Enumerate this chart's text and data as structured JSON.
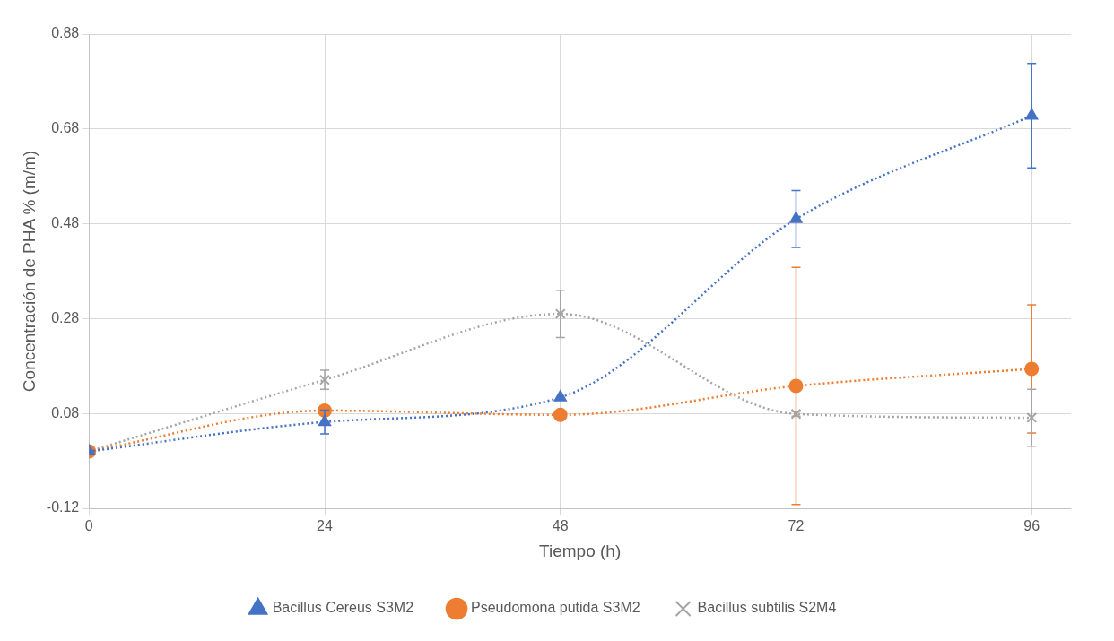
{
  "chart_data": {
    "type": "line",
    "xlabel": "Tiempo (h)",
    "ylabel": "Concentración de PHA % (m/m)",
    "x": [
      0,
      24,
      48,
      72,
      96
    ],
    "xlim": [
      0,
      100
    ],
    "xticks": [
      0,
      24,
      48,
      72,
      96
    ],
    "ylim": [
      -0.12,
      0.88
    ],
    "yticks": [
      -0.12,
      0.08,
      0.28,
      0.48,
      0.68,
      0.88
    ],
    "grid": true,
    "legend": "bottom",
    "line_style": "dotted",
    "series": [
      {
        "name": "Bacillus Cereus S3M2",
        "color": "#4472c4",
        "marker": "triangle",
        "values": [
          0,
          0.062,
          0.114,
          0.49,
          0.708
        ],
        "errors": [
          null,
          0.025,
          null,
          0.06,
          0.11
        ]
      },
      {
        "name": "Pseudomona putida S3M2",
        "color": "#ed7d31",
        "marker": "circle",
        "values": [
          0,
          0.086,
          0.077,
          0.138,
          0.174
        ],
        "errors": [
          null,
          null,
          null,
          0.25,
          0.135
        ]
      },
      {
        "name": "Bacillus subtilis S2M4",
        "color": "#a5a5a5",
        "marker": "cross",
        "values": [
          0,
          0.151,
          0.29,
          0.079,
          0.071
        ],
        "errors": [
          null,
          0.02,
          0.05,
          0.005,
          0.06
        ]
      }
    ]
  }
}
